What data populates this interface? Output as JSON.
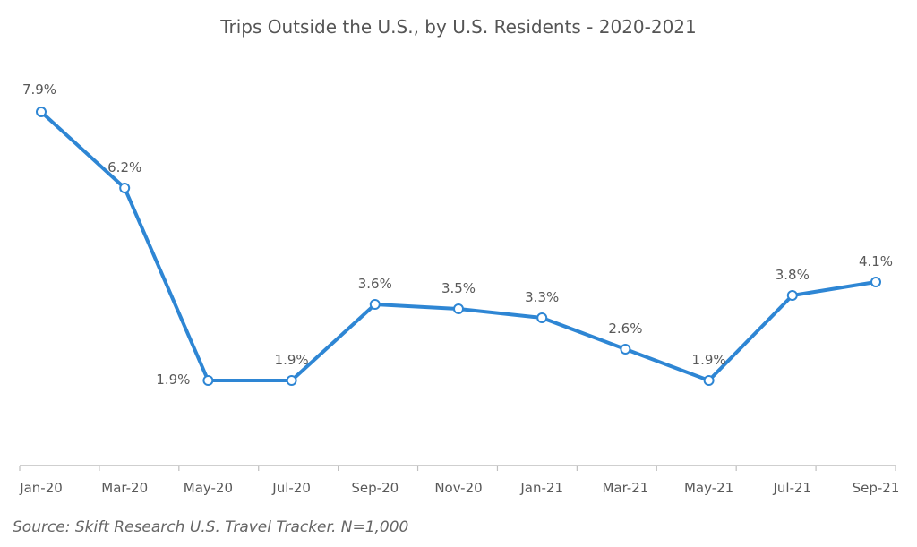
{
  "chart_data": {
    "type": "line",
    "title": "Trips Outside the U.S., by U.S. Residents - 2020-2021",
    "source": "Source: Skift Research U.S. Travel Tracker. N=1,000",
    "categories": [
      "Jan-20",
      "Mar-20",
      "May-20",
      "Jul-20",
      "Sep-20",
      "Nov-20",
      "Jan-21",
      "Mar-21",
      "May-21",
      "Jul-21",
      "Sep-21"
    ],
    "series": [
      {
        "values": [
          7.9,
          6.2,
          1.9,
          1.9,
          3.6,
          3.5,
          3.3,
          2.6,
          1.9,
          3.8,
          4.1
        ],
        "labels": [
          "7.9%",
          "6.2%",
          "1.9%",
          "1.9%",
          "3.6%",
          "3.5%",
          "3.3%",
          "2.6%",
          "1.9%",
          "3.8%",
          "4.1%"
        ]
      }
    ],
    "xlabel": "",
    "ylabel": "",
    "ylim": [
      0,
      10
    ],
    "grid": false,
    "legend": "none",
    "colors": {
      "line": "#2E86D4",
      "marker_fill": "#FFFFFF",
      "axis": "#BFBFBF",
      "text": "#595959"
    }
  }
}
